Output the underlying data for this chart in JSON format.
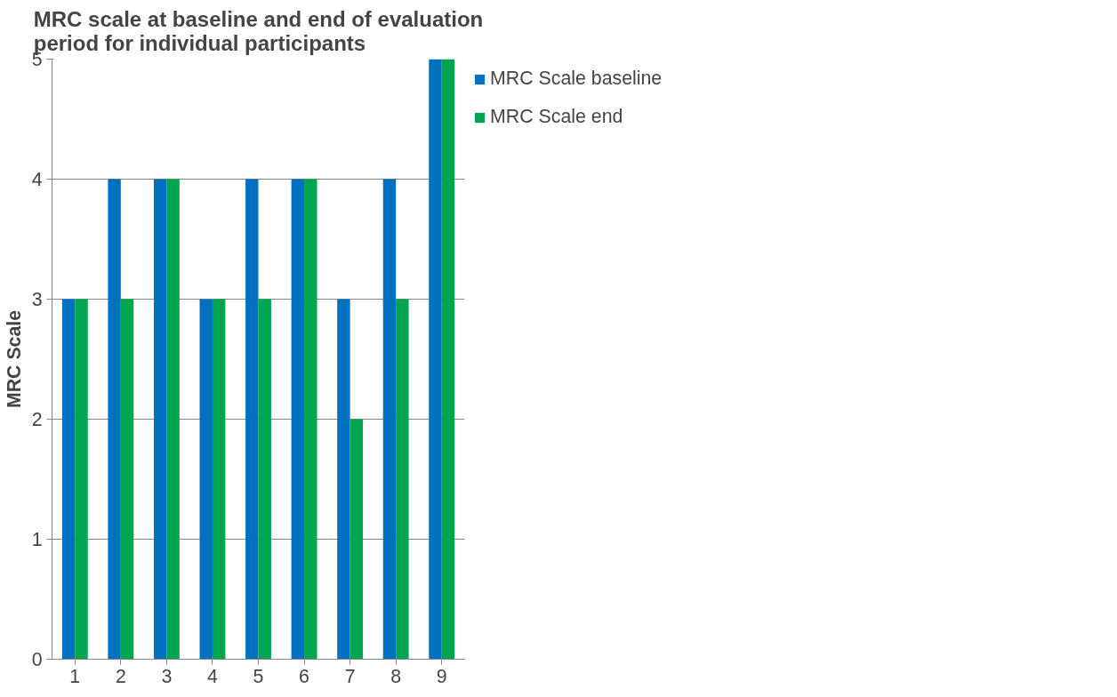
{
  "chart_data": {
    "type": "bar",
    "title": "MRC scale at baseline and end of evaluation period for individual participants",
    "ylabel": "MRC Scale",
    "categories": [
      "1",
      "2",
      "3",
      "4",
      "5",
      "6",
      "7",
      "8",
      "9"
    ],
    "series": [
      {
        "name": "MRC Scale baseline",
        "color": "#0070c0",
        "values": [
          3,
          4,
          4,
          3,
          4,
          4,
          3,
          4,
          5
        ]
      },
      {
        "name": "MRC Scale end",
        "color": "#00a550",
        "values": [
          3,
          3,
          4,
          3,
          3,
          4,
          2,
          3,
          5
        ]
      }
    ],
    "ylim": [
      0,
      5
    ],
    "yticks": [
      0,
      1,
      2,
      3,
      4,
      5
    ],
    "grid": "y",
    "legend": "right"
  }
}
